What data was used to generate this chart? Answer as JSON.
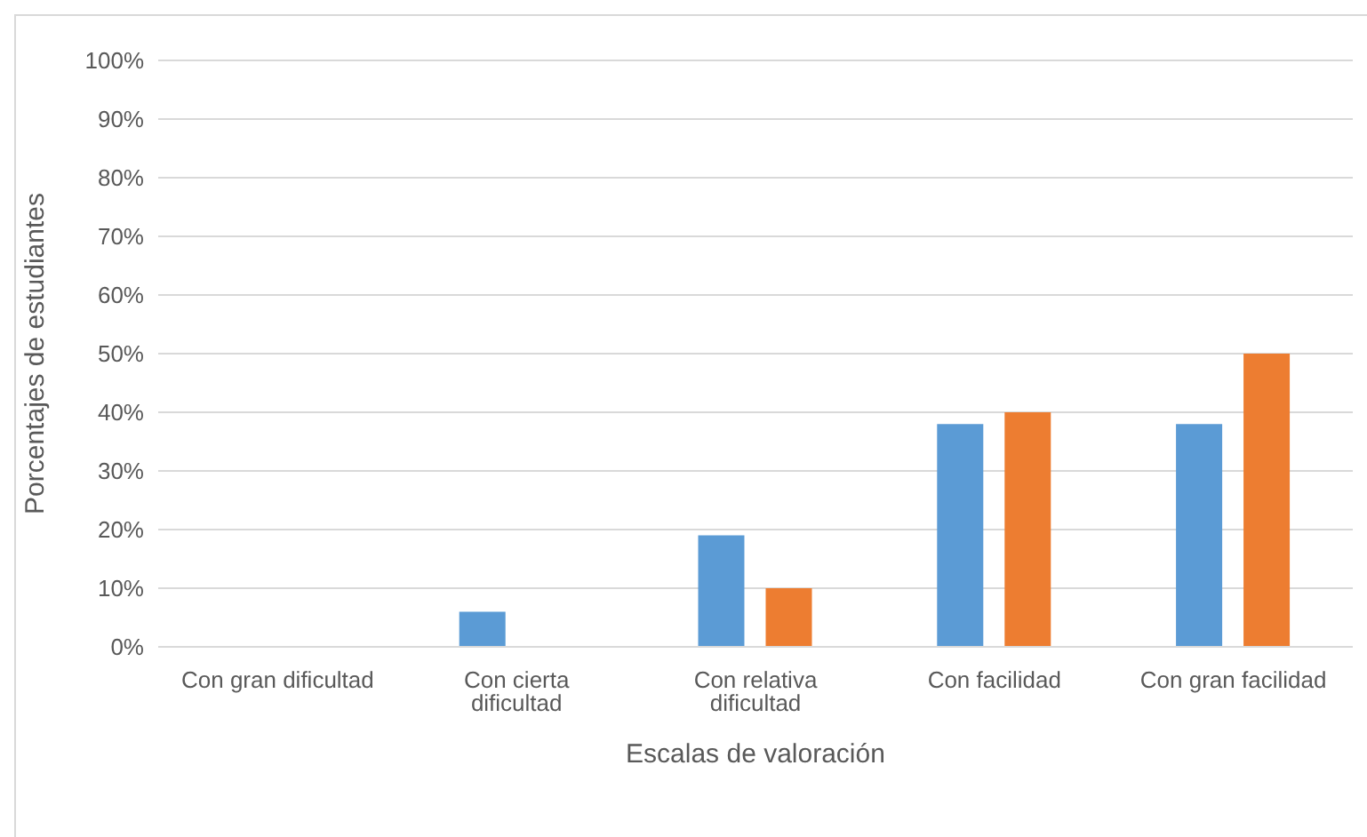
{
  "chart_data": {
    "type": "bar",
    "xlabel": "Escalas de valoración",
    "ylabel": "Porcentajes de estudiantes",
    "categories": [
      "Con gran dificultad",
      "Con cierta dificultad",
      "Con relativa dificultad",
      "Con facilidad",
      "Con gran facilidad"
    ],
    "series": [
      {
        "color": "#5b9bd5",
        "values": [
          0,
          6,
          19,
          38,
          38
        ]
      },
      {
        "color": "#ed7d31",
        "values": [
          0,
          0,
          10,
          40,
          50
        ]
      }
    ],
    "ylim": [
      0,
      100
    ],
    "yticks": [
      {
        "value": 0,
        "label": "0%"
      },
      {
        "value": 10,
        "label": "10%"
      },
      {
        "value": 20,
        "label": "20%"
      },
      {
        "value": 30,
        "label": "30%"
      },
      {
        "value": 40,
        "label": "40%"
      },
      {
        "value": 50,
        "label": "50%"
      },
      {
        "value": 60,
        "label": "60%"
      },
      {
        "value": 70,
        "label": "70%"
      },
      {
        "value": 80,
        "label": "80%"
      },
      {
        "value": 90,
        "label": "90%"
      },
      {
        "value": 100,
        "label": "100%"
      }
    ],
    "grid": "y"
  }
}
